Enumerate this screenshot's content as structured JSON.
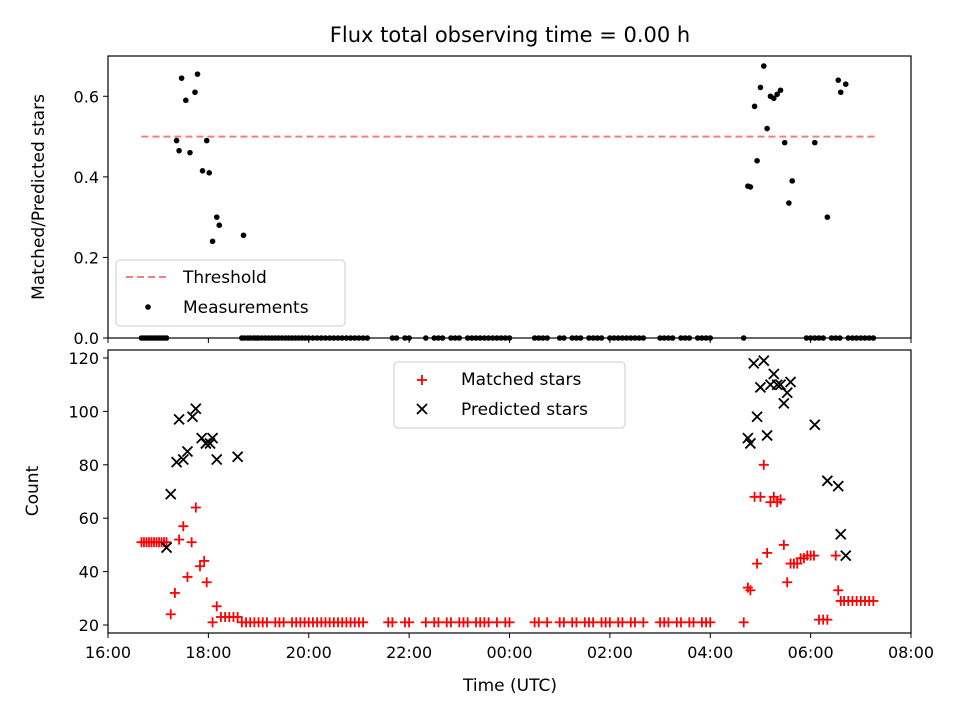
{
  "figure": {
    "title": "Flux total observing time = 0.00 h"
  },
  "chart_data": [
    {
      "type": "scatter",
      "panel": "top",
      "ylabel": "Matched/Predicted stars",
      "xlim": [
        "16:00",
        "08:00"
      ],
      "ylim": [
        0,
        0.7
      ],
      "yticks": [
        0.0,
        0.2,
        0.4,
        0.6
      ],
      "ytick_labels": [
        "0.0",
        "0.2",
        "0.4",
        "0.6"
      ],
      "grid": false,
      "legend_position": "lower-left",
      "threshold": {
        "name": "Threshold",
        "y": 0.5,
        "x_start": "16:40",
        "x_end": "07:20",
        "color": "#f08080",
        "style": "dashed"
      },
      "measurements": {
        "name": "Measurements",
        "color": "#000000",
        "points": [
          [
            "17:22",
            0.49
          ],
          [
            "17:25",
            0.465
          ],
          [
            "17:28",
            0.645
          ],
          [
            "17:33",
            0.59
          ],
          [
            "17:38",
            0.46
          ],
          [
            "17:44",
            0.61
          ],
          [
            "17:47",
            0.655
          ],
          [
            "17:53",
            0.415
          ],
          [
            "17:58",
            0.49
          ],
          [
            "18:01",
            0.41
          ],
          [
            "18:05",
            0.24
          ],
          [
            "18:10",
            0.3
          ],
          [
            "18:13",
            0.28
          ],
          [
            "18:42",
            0.255
          ],
          [
            "04:45",
            0.377
          ],
          [
            "04:48",
            0.375
          ],
          [
            "04:53",
            0.575
          ],
          [
            "04:56",
            0.44
          ],
          [
            "05:00",
            0.622
          ],
          [
            "05:04",
            0.675
          ],
          [
            "05:08",
            0.52
          ],
          [
            "05:12",
            0.6
          ],
          [
            "05:16",
            0.595
          ],
          [
            "05:20",
            0.605
          ],
          [
            "05:24",
            0.615
          ],
          [
            "05:29",
            0.485
          ],
          [
            "05:34",
            0.335
          ],
          [
            "05:38",
            0.39
          ],
          [
            "06:05",
            0.485
          ],
          [
            "06:20",
            0.3
          ],
          [
            "06:33",
            0.64
          ],
          [
            "06:36",
            0.61
          ],
          [
            "06:42",
            0.63
          ]
        ],
        "zero_times": [
          "16:40",
          "16:43",
          "16:46",
          "16:49",
          "16:52",
          "16:55",
          "16:58",
          "17:01",
          "17:04",
          "17:07",
          "17:10",
          "18:40",
          "18:43",
          "18:47",
          "18:50",
          "18:54",
          "18:57",
          "19:00",
          "19:04",
          "19:08",
          "19:12",
          "19:16",
          "19:20",
          "19:24",
          "19:28",
          "19:32",
          "19:36",
          "19:40",
          "19:44",
          "19:48",
          "19:52",
          "19:56",
          "20:00",
          "20:05",
          "20:10",
          "20:15",
          "20:20",
          "20:25",
          "20:30",
          "20:35",
          "20:40",
          "20:45",
          "20:50",
          "20:55",
          "21:00",
          "21:05",
          "21:10",
          "21:40",
          "21:45",
          "21:55",
          "22:00",
          "22:20",
          "22:30",
          "22:35",
          "22:40",
          "22:50",
          "22:55",
          "23:00",
          "23:10",
          "23:15",
          "23:20",
          "23:25",
          "23:30",
          "23:35",
          "23:40",
          "23:45",
          "23:50",
          "23:55",
          "00:00",
          "00:30",
          "00:35",
          "00:40",
          "00:45",
          "01:00",
          "01:05",
          "01:15",
          "01:20",
          "01:25",
          "01:35",
          "01:40",
          "01:45",
          "01:50",
          "02:00",
          "02:05",
          "02:10",
          "02:15",
          "02:20",
          "02:25",
          "02:30",
          "02:35",
          "02:40",
          "03:00",
          "03:05",
          "03:10",
          "03:15",
          "03:25",
          "03:30",
          "03:35",
          "03:45",
          "03:50",
          "03:55",
          "04:00",
          "04:40",
          "05:55",
          "06:00",
          "06:05",
          "06:10",
          "06:15",
          "06:25",
          "06:30",
          "06:35",
          "06:45",
          "06:50",
          "06:55",
          "07:00",
          "07:05",
          "07:10",
          "07:15"
        ]
      }
    },
    {
      "type": "scatter",
      "panel": "bottom",
      "xlabel": "Time (UTC)",
      "ylabel": "Count",
      "xlim": [
        "16:00",
        "08:00"
      ],
      "xticks": [
        "16:00",
        "18:00",
        "20:00",
        "22:00",
        "00:00",
        "02:00",
        "04:00",
        "06:00",
        "08:00"
      ],
      "ylim": [
        17,
        123
      ],
      "yticks": [
        20,
        40,
        60,
        80,
        100,
        120
      ],
      "grid": false,
      "legend_position": "upper-center",
      "series": [
        {
          "name": "Matched stars",
          "marker": "plus",
          "color": "#ff0000",
          "points": [
            [
              "16:40",
              51
            ],
            [
              "16:43",
              51
            ],
            [
              "16:46",
              51
            ],
            [
              "16:49",
              51
            ],
            [
              "16:52",
              51
            ],
            [
              "16:55",
              51
            ],
            [
              "16:58",
              51
            ],
            [
              "17:01",
              51
            ],
            [
              "17:04",
              51
            ],
            [
              "17:07",
              51
            ],
            [
              "17:10",
              51
            ],
            [
              "17:15",
              24
            ],
            [
              "17:20",
              32
            ],
            [
              "17:25",
              52
            ],
            [
              "17:30",
              57
            ],
            [
              "17:35",
              38
            ],
            [
              "17:40",
              51
            ],
            [
              "17:45",
              64
            ],
            [
              "17:50",
              42
            ],
            [
              "17:55",
              44
            ],
            [
              "17:58",
              36
            ],
            [
              "18:05",
              21
            ],
            [
              "18:10",
              27
            ],
            [
              "18:15",
              23
            ],
            [
              "18:20",
              23
            ],
            [
              "18:25",
              23
            ],
            [
              "18:30",
              23
            ],
            [
              "18:35",
              23
            ],
            [
              "18:40",
              21
            ],
            [
              "18:45",
              21
            ],
            [
              "18:50",
              21
            ],
            [
              "18:55",
              21
            ],
            [
              "19:00",
              21
            ],
            [
              "19:05",
              21
            ],
            [
              "19:10",
              21
            ],
            [
              "19:20",
              21
            ],
            [
              "19:25",
              21
            ],
            [
              "19:30",
              21
            ],
            [
              "19:40",
              21
            ],
            [
              "19:45",
              21
            ],
            [
              "19:50",
              21
            ],
            [
              "19:55",
              21
            ],
            [
              "20:00",
              21
            ],
            [
              "20:05",
              21
            ],
            [
              "20:10",
              21
            ],
            [
              "20:15",
              21
            ],
            [
              "20:20",
              21
            ],
            [
              "20:25",
              21
            ],
            [
              "20:30",
              21
            ],
            [
              "20:35",
              21
            ],
            [
              "20:40",
              21
            ],
            [
              "20:45",
              21
            ],
            [
              "20:50",
              21
            ],
            [
              "20:55",
              21
            ],
            [
              "21:00",
              21
            ],
            [
              "21:05",
              21
            ],
            [
              "21:35",
              21
            ],
            [
              "21:40",
              21
            ],
            [
              "21:55",
              21
            ],
            [
              "22:00",
              21
            ],
            [
              "22:20",
              21
            ],
            [
              "22:30",
              21
            ],
            [
              "22:35",
              21
            ],
            [
              "22:45",
              21
            ],
            [
              "22:50",
              21
            ],
            [
              "23:00",
              21
            ],
            [
              "23:05",
              21
            ],
            [
              "23:10",
              21
            ],
            [
              "23:20",
              21
            ],
            [
              "23:25",
              21
            ],
            [
              "23:30",
              21
            ],
            [
              "23:35",
              21
            ],
            [
              "23:45",
              21
            ],
            [
              "23:55",
              21
            ],
            [
              "00:00",
              21
            ],
            [
              "00:30",
              21
            ],
            [
              "00:35",
              21
            ],
            [
              "00:45",
              21
            ],
            [
              "01:00",
              21
            ],
            [
              "01:05",
              21
            ],
            [
              "01:15",
              21
            ],
            [
              "01:20",
              21
            ],
            [
              "01:30",
              21
            ],
            [
              "01:35",
              21
            ],
            [
              "01:40",
              21
            ],
            [
              "01:50",
              21
            ],
            [
              "01:55",
              21
            ],
            [
              "02:00",
              21
            ],
            [
              "02:10",
              21
            ],
            [
              "02:15",
              21
            ],
            [
              "02:25",
              21
            ],
            [
              "02:30",
              21
            ],
            [
              "02:40",
              21
            ],
            [
              "03:00",
              21
            ],
            [
              "03:05",
              21
            ],
            [
              "03:10",
              21
            ],
            [
              "03:20",
              21
            ],
            [
              "03:25",
              21
            ],
            [
              "03:35",
              21
            ],
            [
              "03:40",
              21
            ],
            [
              "03:50",
              21
            ],
            [
              "03:55",
              21
            ],
            [
              "04:00",
              21
            ],
            [
              "04:40",
              21
            ],
            [
              "04:45",
              34
            ],
            [
              "04:48",
              33
            ],
            [
              "04:53",
              68
            ],
            [
              "04:56",
              43
            ],
            [
              "05:00",
              68
            ],
            [
              "05:04",
              80
            ],
            [
              "05:08",
              47
            ],
            [
              "05:12",
              66
            ],
            [
              "05:16",
              68
            ],
            [
              "05:20",
              66
            ],
            [
              "05:24",
              67
            ],
            [
              "05:28",
              50
            ],
            [
              "05:32",
              36
            ],
            [
              "05:36",
              43
            ],
            [
              "05:40",
              43
            ],
            [
              "05:44",
              43
            ],
            [
              "05:48",
              45
            ],
            [
              "05:52",
              45
            ],
            [
              "05:56",
              46
            ],
            [
              "06:00",
              46
            ],
            [
              "06:04",
              46
            ],
            [
              "06:10",
              22
            ],
            [
              "06:15",
              22
            ],
            [
              "06:20",
              22
            ],
            [
              "06:30",
              46
            ],
            [
              "06:33",
              33
            ],
            [
              "06:36",
              29
            ],
            [
              "06:40",
              29
            ],
            [
              "06:45",
              29
            ],
            [
              "06:50",
              29
            ],
            [
              "06:55",
              29
            ],
            [
              "07:00",
              29
            ],
            [
              "07:05",
              29
            ],
            [
              "07:10",
              29
            ],
            [
              "07:15",
              29
            ]
          ]
        },
        {
          "name": "Predicted stars",
          "marker": "x",
          "color": "#000000",
          "points": [
            [
              "17:10",
              49
            ],
            [
              "17:15",
              69
            ],
            [
              "17:22",
              81
            ],
            [
              "17:25",
              97
            ],
            [
              "17:30",
              82
            ],
            [
              "17:35",
              85
            ],
            [
              "17:41",
              98
            ],
            [
              "17:45",
              101
            ],
            [
              "17:52",
              90
            ],
            [
              "17:57",
              88
            ],
            [
              "18:02",
              88
            ],
            [
              "18:05",
              90
            ],
            [
              "18:10",
              82
            ],
            [
              "18:35",
              83
            ],
            [
              "04:45",
              90
            ],
            [
              "04:48",
              88
            ],
            [
              "04:52",
              118
            ],
            [
              "04:56",
              98
            ],
            [
              "05:00",
              109
            ],
            [
              "05:04",
              119
            ],
            [
              "05:08",
              91
            ],
            [
              "05:12",
              110
            ],
            [
              "05:16",
              114
            ],
            [
              "05:20",
              110
            ],
            [
              "05:24",
              110
            ],
            [
              "05:28",
              103
            ],
            [
              "05:32",
              107
            ],
            [
              "05:36",
              111
            ],
            [
              "06:05",
              95
            ],
            [
              "06:20",
              74
            ],
            [
              "06:33",
              72
            ],
            [
              "06:36",
              54
            ],
            [
              "06:42",
              46
            ]
          ]
        }
      ]
    }
  ]
}
